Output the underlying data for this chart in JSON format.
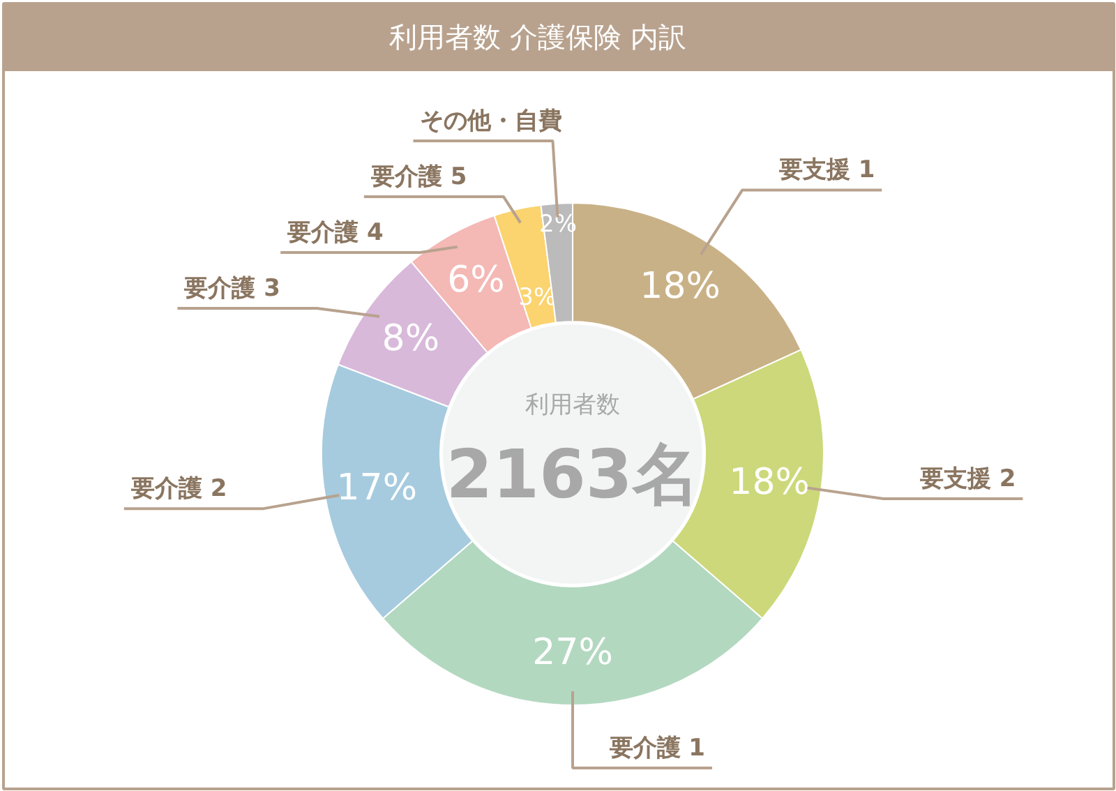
{
  "chart_data": {
    "type": "donut",
    "title": "利用者数 介護保険 内訳",
    "categories": [
      "要支援 1",
      "要支援 2",
      "要介護 1",
      "要介護 2",
      "要介護 3",
      "要介護 4",
      "要介護 5",
      "その他・自費"
    ],
    "values": [
      18,
      18,
      27,
      17,
      8,
      6,
      3,
      2
    ],
    "colors": [
      "#c9b187",
      "#cdd87a",
      "#b3d8c0",
      "#a6cbdf",
      "#d8b9da",
      "#f4b8b5",
      "#fbd36f",
      "#bbbbbb"
    ],
    "value_labels": [
      "18%",
      "18%",
      "27%",
      "17%",
      "8%",
      "6%",
      "3%",
      "2%"
    ],
    "annotations": [
      "利用者数",
      "2163名"
    ]
  }
}
